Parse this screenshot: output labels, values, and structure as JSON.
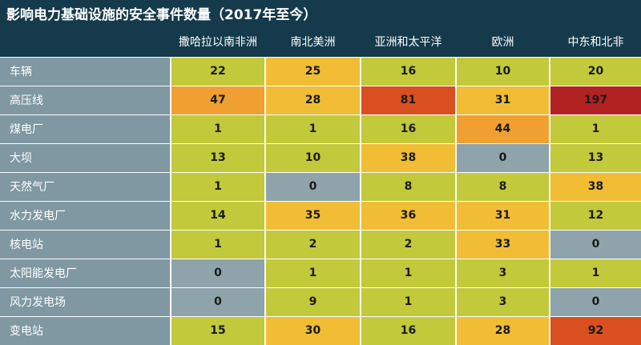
{
  "chart_data": {
    "type": "table",
    "title": "影响电力基础设施的安全事件数量（2017年至今）",
    "columns": [
      "撒哈拉以南非洲",
      "南北美洲",
      "亚洲和太平洋",
      "欧洲",
      "中东和北非"
    ],
    "rows": [
      {
        "label": "车辆",
        "values": [
          22,
          25,
          16,
          10,
          20
        ]
      },
      {
        "label": "高压线",
        "values": [
          47,
          28,
          81,
          31,
          197
        ]
      },
      {
        "label": "煤电厂",
        "values": [
          1,
          1,
          16,
          44,
          1
        ]
      },
      {
        "label": "大坝",
        "values": [
          13,
          10,
          38,
          0,
          13
        ]
      },
      {
        "label": "天然气厂",
        "values": [
          1,
          0,
          8,
          8,
          38
        ]
      },
      {
        "label": "水力发电厂",
        "values": [
          14,
          35,
          36,
          31,
          12
        ]
      },
      {
        "label": "核电站",
        "values": [
          1,
          2,
          2,
          33,
          0
        ]
      },
      {
        "label": "太阳能发电厂",
        "values": [
          0,
          1,
          1,
          3,
          1
        ]
      },
      {
        "label": "风力发电场",
        "values": [
          0,
          9,
          1,
          3,
          0
        ]
      },
      {
        "label": "变电站",
        "values": [
          15,
          30,
          16,
          28,
          92
        ]
      }
    ],
    "color_scale": {
      "zero": "#8fa3aa",
      "low": "#c2c93a",
      "mid": "#f0bd35",
      "high": "#f0a030",
      "higher": "#e88a2a",
      "very_high": "#d94f1f",
      "max": "#b22222"
    }
  }
}
